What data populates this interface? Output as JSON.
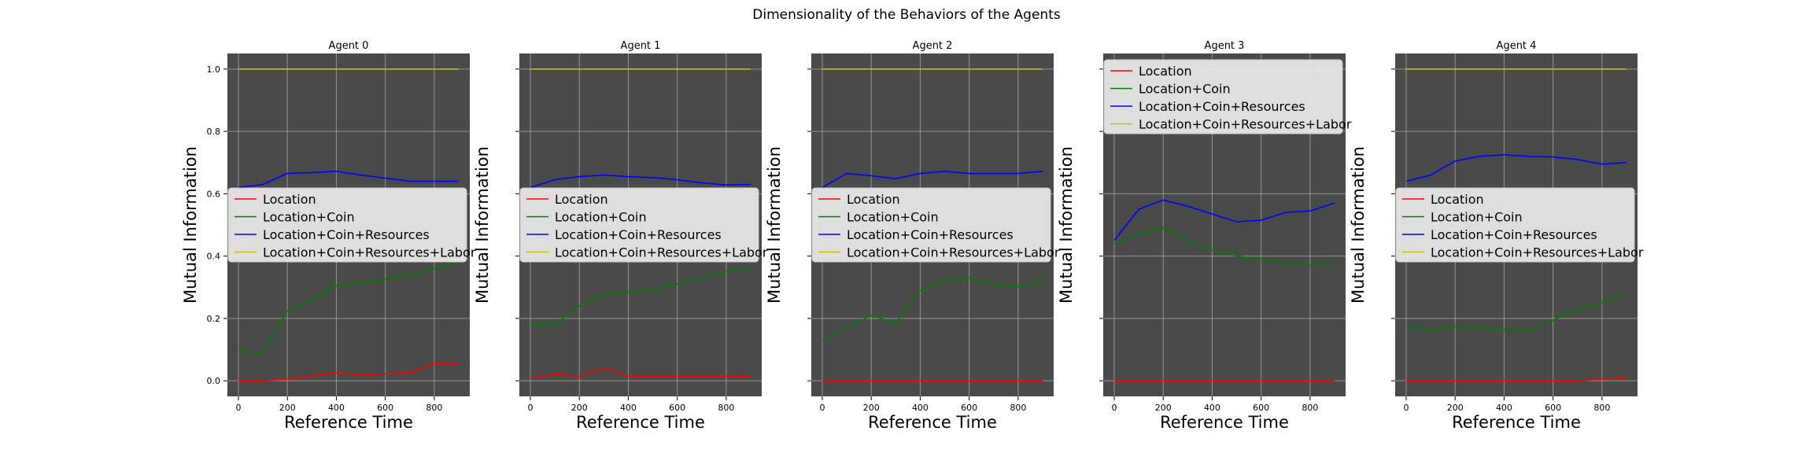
{
  "figure": {
    "title": "Dimensionality of the Behaviors of the Agents"
  },
  "chart_data": {
    "type": "line",
    "title": "Dimensionality of the Behaviors of the Agents",
    "xlabel": "Reference Time",
    "ylabel": "Mutual Information",
    "xlim": [
      -45,
      945
    ],
    "ylim": [
      -0.05,
      1.05
    ],
    "xticks": [
      0,
      200,
      400,
      600,
      800
    ],
    "yticks": [
      0.0,
      0.2,
      0.4,
      0.6,
      0.8,
      1.0
    ],
    "ytick_labels": [
      "0.0",
      "0.2",
      "0.4",
      "0.6",
      "0.8",
      "1.0"
    ],
    "grid": true,
    "x": [
      0,
      100,
      200,
      300,
      400,
      500,
      600,
      700,
      800,
      900
    ],
    "series_style": [
      {
        "name": "Location",
        "color": "#ff0000"
      },
      {
        "name": "Location+Coin",
        "color": "#008000"
      },
      {
        "name": "Location+Coin+Resources",
        "color": "#0000ff"
      },
      {
        "name": "Location+Coin+Resources+Labor",
        "color": "#bfbf00"
      }
    ],
    "panels": [
      {
        "title": "Agent 0",
        "legend_position": "center-left",
        "series": [
          {
            "name": "Location",
            "values": [
              0.0,
              0.0,
              0.005,
              0.015,
              0.025,
              0.018,
              0.022,
              0.025,
              0.055,
              0.055
            ]
          },
          {
            "name": "Location+Coin",
            "values": [
              0.095,
              0.09,
              0.225,
              0.26,
              0.305,
              0.315,
              0.325,
              0.34,
              0.36,
              0.38
            ]
          },
          {
            "name": "Location+Coin+Resources",
            "values": [
              0.62,
              0.63,
              0.665,
              0.668,
              0.672,
              0.66,
              0.65,
              0.64,
              0.64,
              0.64
            ]
          },
          {
            "name": "Location+Coin+Resources+Labor",
            "values": [
              1.0,
              1.0,
              1.0,
              1.0,
              1.0,
              1.0,
              1.0,
              1.0,
              1.0,
              1.0
            ]
          }
        ]
      },
      {
        "title": "Agent 1",
        "legend_position": "center-left",
        "series": [
          {
            "name": "Location",
            "values": [
              0.01,
              0.02,
              0.015,
              0.04,
              0.015,
              0.015,
              0.015,
              0.015,
              0.015,
              0.015
            ]
          },
          {
            "name": "Location+Coin",
            "values": [
              0.18,
              0.18,
              0.24,
              0.275,
              0.285,
              0.295,
              0.31,
              0.33,
              0.35,
              0.36
            ]
          },
          {
            "name": "Location+Coin+Resources",
            "values": [
              0.62,
              0.645,
              0.655,
              0.66,
              0.655,
              0.652,
              0.645,
              0.635,
              0.628,
              0.63
            ]
          },
          {
            "name": "Location+Coin+Resources+Labor",
            "values": [
              1.0,
              1.0,
              1.0,
              1.0,
              1.0,
              1.0,
              1.0,
              1.0,
              1.0,
              1.0
            ]
          }
        ]
      },
      {
        "title": "Agent 2",
        "legend_position": "center-left",
        "series": [
          {
            "name": "Location",
            "values": [
              0.0,
              0.0,
              0.0,
              0.0,
              0.0,
              0.0,
              0.0,
              0.0,
              0.0,
              0.0
            ]
          },
          {
            "name": "Location+Coin",
            "values": [
              0.13,
              0.17,
              0.21,
              0.185,
              0.29,
              0.32,
              0.33,
              0.31,
              0.3,
              0.32
            ]
          },
          {
            "name": "Location+Coin+Resources",
            "values": [
              0.62,
              0.665,
              0.658,
              0.648,
              0.665,
              0.672,
              0.665,
              0.665,
              0.665,
              0.672
            ]
          },
          {
            "name": "Location+Coin+Resources+Labor",
            "values": [
              1.0,
              1.0,
              1.0,
              1.0,
              1.0,
              1.0,
              1.0,
              1.0,
              1.0,
              1.0
            ]
          }
        ]
      },
      {
        "title": "Agent 3",
        "legend_position": "upper-left",
        "series": [
          {
            "name": "Location",
            "values": [
              0.0,
              0.0,
              0.0,
              0.0,
              0.0,
              0.0,
              0.0,
              0.0,
              0.0,
              0.0
            ]
          },
          {
            "name": "Location+Coin",
            "values": [
              0.44,
              0.47,
              0.49,
              0.45,
              0.42,
              0.4,
              0.39,
              0.38,
              0.37,
              0.39
            ]
          },
          {
            "name": "Location+Coin+Resources",
            "values": [
              0.45,
              0.55,
              0.58,
              0.56,
              0.535,
              0.51,
              0.515,
              0.54,
              0.545,
              0.57
            ]
          },
          {
            "name": "Location+Coin+Resources+Labor",
            "values": [
              1.0,
              1.0,
              1.0,
              1.0,
              1.0,
              1.0,
              1.0,
              1.0,
              1.0,
              1.0
            ]
          }
        ]
      },
      {
        "title": "Agent 4",
        "legend_position": "center-left",
        "series": [
          {
            "name": "Location",
            "values": [
              0.0,
              0.0,
              0.0,
              0.0,
              0.0,
              0.0,
              0.0,
              0.0,
              0.005,
              0.01
            ]
          },
          {
            "name": "Location+Coin",
            "values": [
              0.175,
              0.16,
              0.175,
              0.17,
              0.165,
              0.16,
              0.195,
              0.23,
              0.25,
              0.28
            ]
          },
          {
            "name": "Location+Coin+Resources",
            "values": [
              0.64,
              0.66,
              0.705,
              0.72,
              0.725,
              0.72,
              0.718,
              0.71,
              0.695,
              0.7
            ]
          },
          {
            "name": "Location+Coin+Resources+Labor",
            "values": [
              1.0,
              1.0,
              1.0,
              1.0,
              1.0,
              1.0,
              1.0,
              1.0,
              1.0,
              1.0
            ]
          }
        ]
      }
    ]
  }
}
